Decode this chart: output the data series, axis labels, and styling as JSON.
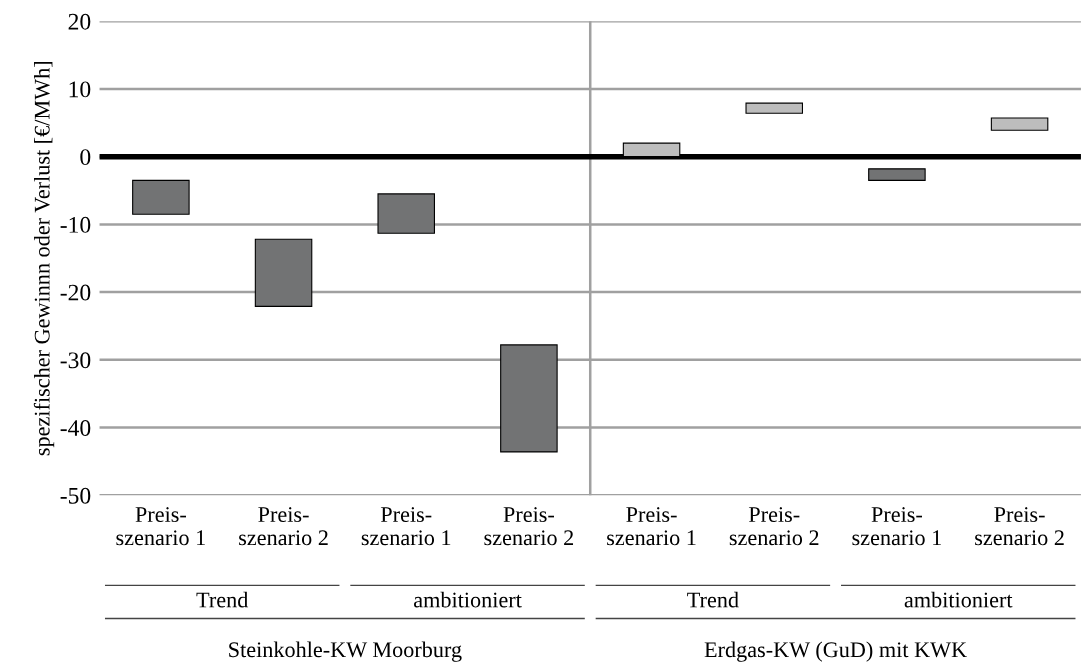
{
  "chart_data": {
    "type": "bar",
    "ylabel": "spezifischer Gewinnn oder Verlust [€/MWh]",
    "categories": [
      "Preis-\nszenario 1",
      "Preis-\nszenario 2",
      "Preis-\nszenario 1",
      "Preis-\nszenario 2",
      "Preis-\nszenario 1",
      "Preis-\nszenario 2",
      "Preis-\nszenario 1",
      "Preis-\nszenario 2"
    ],
    "base": [
      -8.5,
      -22.1,
      -11.3,
      -43.6,
      0,
      6.4,
      -3.5,
      3.9
    ],
    "values": [
      5.0,
      9.9,
      5.8,
      15.8,
      2.0,
      1.5,
      1.7,
      1.8
    ],
    "colors": [
      "#727374",
      "#727374",
      "#727374",
      "#727374",
      "#bdbdbd",
      "#bdbdbd",
      "#727374",
      "#bdbdbd"
    ],
    "ylim": [
      -50,
      20
    ],
    "yticks": [
      -50,
      -40,
      -30,
      -20,
      -10,
      0,
      10,
      20
    ],
    "grid": "y",
    "ref_lines": [
      {
        "axis": "y",
        "value": 0,
        "color": "#000000"
      }
    ],
    "annotations": [
      "Trend",
      "ambitioniert",
      "Trend",
      "ambitioniert",
      "Steinkohle-KW Moorburg",
      "Erdgas-KW (GuD) mit KWK"
    ]
  }
}
